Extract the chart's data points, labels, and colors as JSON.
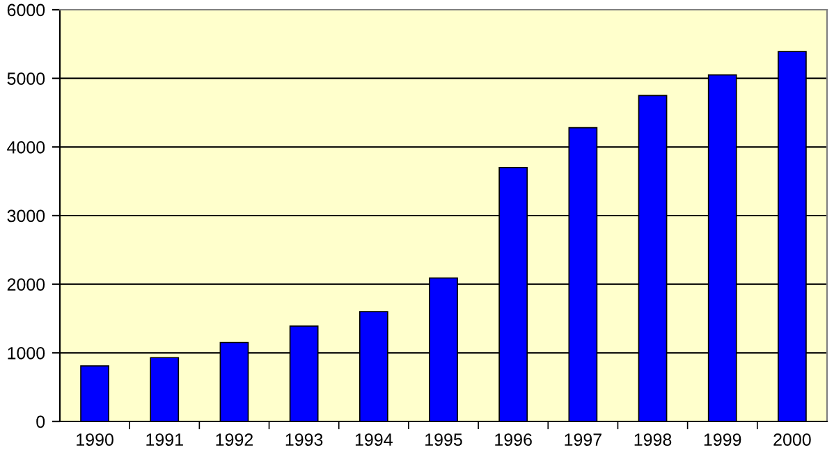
{
  "chart_data": {
    "type": "bar",
    "categories": [
      "1990",
      "1991",
      "1992",
      "1993",
      "1994",
      "1995",
      "1996",
      "1997",
      "1998",
      "1999",
      "2000"
    ],
    "values": [
      810,
      930,
      1150,
      1390,
      1600,
      2090,
      3700,
      4280,
      4750,
      5050,
      5390
    ],
    "color": "#0000ff",
    "ylim": [
      0,
      6000
    ],
    "yticks": [
      0,
      1000,
      2000,
      3000,
      4000,
      5000,
      6000
    ],
    "grid": "y"
  }
}
